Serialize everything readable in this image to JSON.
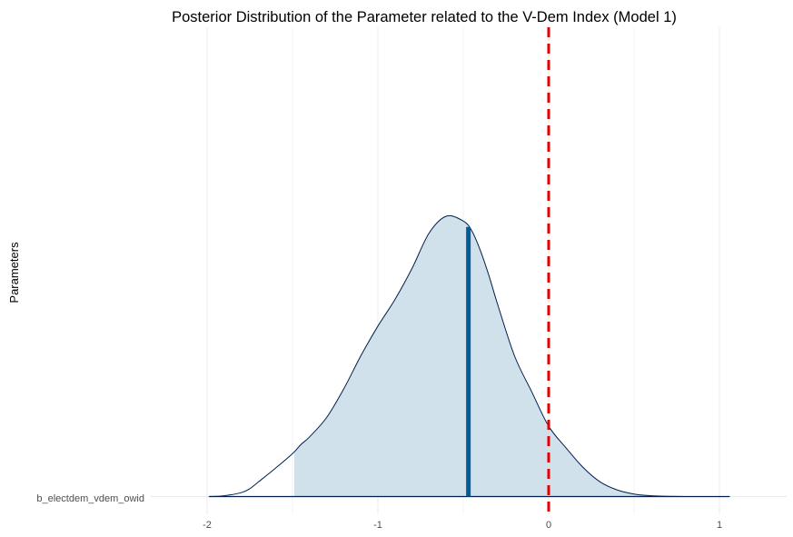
{
  "chart_data": {
    "type": "area",
    "title": "Posterior Distribution of the Parameter related to the V-Dem Index (Model 1)",
    "xlabel": "",
    "ylabel": "Parameters",
    "xlim": [
      -2.0,
      1.35
    ],
    "x_ticks": [
      "-2",
      "-1",
      "0",
      "1"
    ],
    "x_tick_values": [
      -2,
      -1,
      0,
      1
    ],
    "y_categories": [
      "b_electdem_vdem_owid"
    ],
    "grid": true,
    "colors": {
      "fill": "#d1e1ec",
      "outline": "#011f4b",
      "median": "#005b96",
      "zero_line": "#e60000",
      "grid": "#ebebeb"
    },
    "series": [
      {
        "parameter": "b_electdem_vdem_owid",
        "median": -0.47,
        "interval": [
          -1.49,
          0.62
        ],
        "reference_line": 0,
        "density": {
          "x": [
            -1.99,
            -1.9,
            -1.8,
            -1.75,
            -1.7,
            -1.6,
            -1.5,
            -1.45,
            -1.4,
            -1.3,
            -1.2,
            -1.1,
            -1.0,
            -0.9,
            -0.8,
            -0.7,
            -0.6,
            -0.5,
            -0.45,
            -0.4,
            -0.35,
            -0.3,
            -0.2,
            -0.1,
            0.0,
            0.1,
            0.2,
            0.3,
            0.4,
            0.5,
            0.6,
            0.7,
            0.8,
            0.9,
            0.95,
            1.0,
            1.06
          ],
          "y": [
            0.0,
            0.003,
            0.014,
            0.028,
            0.052,
            0.101,
            0.153,
            0.186,
            0.213,
            0.282,
            0.384,
            0.502,
            0.608,
            0.703,
            0.814,
            0.94,
            1.0,
            0.983,
            0.948,
            0.878,
            0.789,
            0.688,
            0.502,
            0.375,
            0.251,
            0.175,
            0.105,
            0.053,
            0.024,
            0.009,
            0.003,
            0.001,
            0.0,
            0.0,
            0.0,
            0.0,
            0.0
          ]
        }
      }
    ]
  }
}
